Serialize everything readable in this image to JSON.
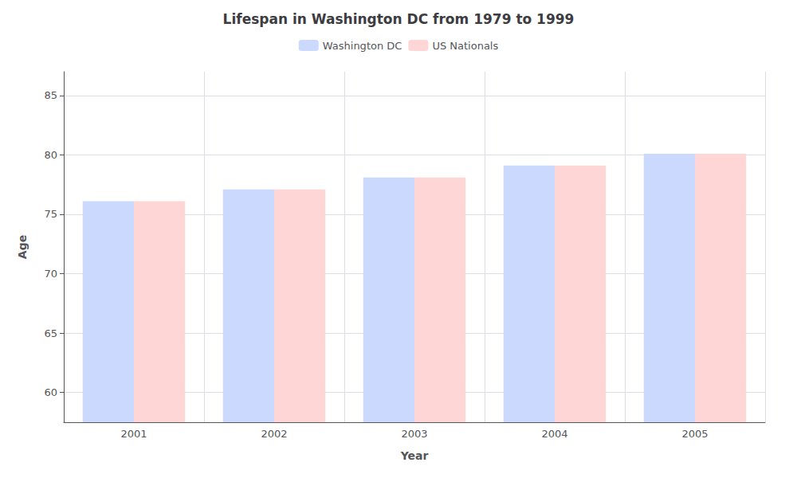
{
  "chart_data": {
    "type": "bar",
    "title": "Lifespan in Washington DC from 1979 to 1999",
    "xlabel": "Year",
    "ylabel": "Age",
    "categories": [
      "2001",
      "2002",
      "2003",
      "2004",
      "2005"
    ],
    "series": [
      {
        "name": "Washington DC",
        "color": "#ccd9ff",
        "values": [
          76.1,
          77.1,
          78.1,
          79.1,
          80.1
        ]
      },
      {
        "name": "US Nationals",
        "color": "#ffd6d6",
        "values": [
          76.1,
          77.1,
          78.1,
          79.1,
          80.1
        ]
      }
    ],
    "ylim": [
      57.5,
      87
    ],
    "yticks": [
      60,
      65,
      70,
      75,
      80,
      85
    ],
    "grid": true,
    "legend": "top"
  }
}
